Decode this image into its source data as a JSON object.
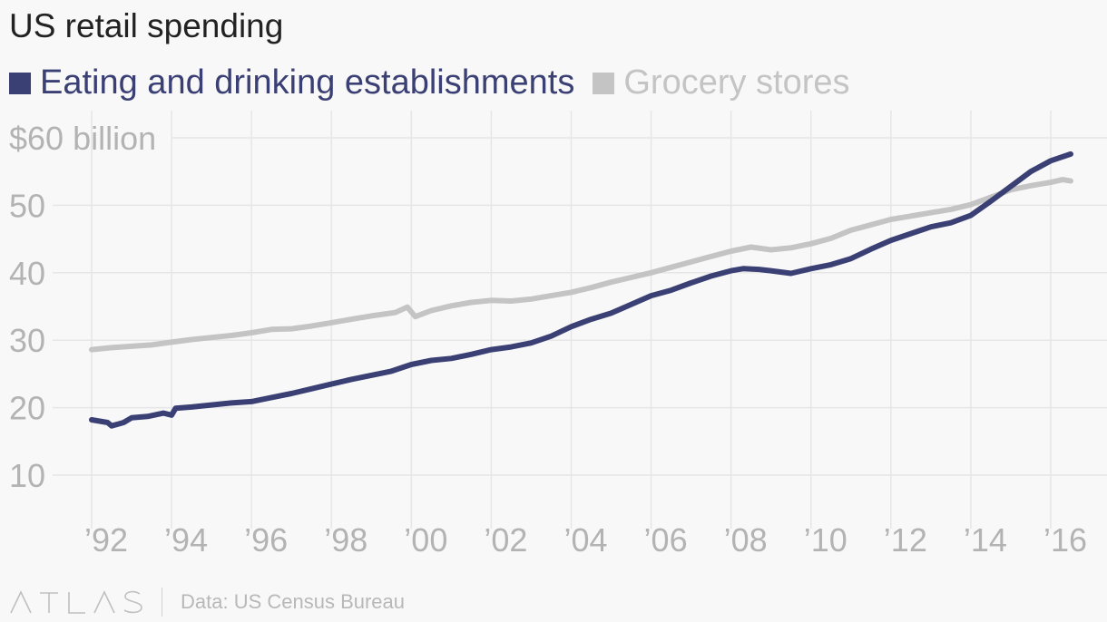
{
  "chart_data": {
    "type": "line",
    "title": "US retail spending",
    "xlabel": "",
    "ylabel": "",
    "y_unit_label": "$60 billion",
    "ylim": [
      5,
      64
    ],
    "xlim": [
      1991.6,
      2016.9
    ],
    "x_ticks": [
      1992,
      1994,
      1996,
      1998,
      2000,
      2002,
      2004,
      2006,
      2008,
      2010,
      2012,
      2014,
      2016
    ],
    "x_tick_labels": [
      "’92",
      "’94",
      "’96",
      "’98",
      "’00",
      "’02",
      "’04",
      "’06",
      "’08",
      "’10",
      "’12",
      "’14",
      "’16"
    ],
    "y_ticks": [
      10,
      20,
      30,
      40,
      50,
      60
    ],
    "y_tick_labels": [
      "10",
      "20",
      "30",
      "40",
      "50",
      "$60 billion"
    ],
    "grid": true,
    "legend_position": "top-left",
    "series": [
      {
        "name": "Eating and drinking establishments",
        "color": "#3a3f74",
        "points": [
          [
            1992.0,
            18.2
          ],
          [
            1992.4,
            17.8
          ],
          [
            1992.5,
            17.3
          ],
          [
            1992.8,
            17.8
          ],
          [
            1993.0,
            18.5
          ],
          [
            1993.4,
            18.7
          ],
          [
            1993.8,
            19.2
          ],
          [
            1994.0,
            18.9
          ],
          [
            1994.1,
            19.9
          ],
          [
            1994.5,
            20.1
          ],
          [
            1995.0,
            20.4
          ],
          [
            1995.5,
            20.7
          ],
          [
            1996.0,
            20.9
          ],
          [
            1996.5,
            21.5
          ],
          [
            1997.0,
            22.1
          ],
          [
            1997.5,
            22.8
          ],
          [
            1998.0,
            23.5
          ],
          [
            1998.5,
            24.2
          ],
          [
            1999.0,
            24.8
          ],
          [
            1999.5,
            25.4
          ],
          [
            2000.0,
            26.4
          ],
          [
            2000.5,
            27.0
          ],
          [
            2001.0,
            27.3
          ],
          [
            2001.5,
            27.9
          ],
          [
            2002.0,
            28.6
          ],
          [
            2002.5,
            29.0
          ],
          [
            2003.0,
            29.6
          ],
          [
            2003.5,
            30.6
          ],
          [
            2004.0,
            32.0
          ],
          [
            2004.5,
            33.1
          ],
          [
            2005.0,
            34.0
          ],
          [
            2005.5,
            35.3
          ],
          [
            2006.0,
            36.6
          ],
          [
            2006.5,
            37.4
          ],
          [
            2007.0,
            38.5
          ],
          [
            2007.5,
            39.5
          ],
          [
            2008.0,
            40.3
          ],
          [
            2008.3,
            40.6
          ],
          [
            2008.7,
            40.5
          ],
          [
            2009.0,
            40.3
          ],
          [
            2009.5,
            39.9
          ],
          [
            2010.0,
            40.6
          ],
          [
            2010.5,
            41.2
          ],
          [
            2011.0,
            42.1
          ],
          [
            2011.5,
            43.5
          ],
          [
            2012.0,
            44.8
          ],
          [
            2012.5,
            45.8
          ],
          [
            2013.0,
            46.8
          ],
          [
            2013.5,
            47.4
          ],
          [
            2014.0,
            48.5
          ],
          [
            2014.5,
            50.6
          ],
          [
            2015.0,
            52.8
          ],
          [
            2015.5,
            55.0
          ],
          [
            2016.0,
            56.6
          ],
          [
            2016.5,
            57.6
          ]
        ]
      },
      {
        "name": "Grocery stores",
        "color": "#c4c4c4",
        "points": [
          [
            1992.0,
            28.6
          ],
          [
            1992.5,
            28.9
          ],
          [
            1993.0,
            29.1
          ],
          [
            1993.5,
            29.3
          ],
          [
            1994.0,
            29.7
          ],
          [
            1994.5,
            30.1
          ],
          [
            1995.0,
            30.4
          ],
          [
            1995.5,
            30.7
          ],
          [
            1996.0,
            31.1
          ],
          [
            1996.5,
            31.6
          ],
          [
            1997.0,
            31.7
          ],
          [
            1997.5,
            32.1
          ],
          [
            1998.0,
            32.6
          ],
          [
            1998.5,
            33.1
          ],
          [
            1999.0,
            33.6
          ],
          [
            1999.6,
            34.1
          ],
          [
            1999.9,
            34.9
          ],
          [
            2000.1,
            33.5
          ],
          [
            2000.5,
            34.4
          ],
          [
            2001.0,
            35.1
          ],
          [
            2001.5,
            35.6
          ],
          [
            2002.0,
            35.9
          ],
          [
            2002.5,
            35.8
          ],
          [
            2003.0,
            36.1
          ],
          [
            2003.5,
            36.6
          ],
          [
            2004.0,
            37.1
          ],
          [
            2004.5,
            37.8
          ],
          [
            2005.0,
            38.6
          ],
          [
            2005.5,
            39.3
          ],
          [
            2006.0,
            40.0
          ],
          [
            2006.5,
            40.8
          ],
          [
            2007.0,
            41.6
          ],
          [
            2007.5,
            42.4
          ],
          [
            2008.0,
            43.2
          ],
          [
            2008.5,
            43.8
          ],
          [
            2009.0,
            43.4
          ],
          [
            2009.5,
            43.7
          ],
          [
            2010.0,
            44.3
          ],
          [
            2010.5,
            45.1
          ],
          [
            2011.0,
            46.3
          ],
          [
            2011.5,
            47.1
          ],
          [
            2012.0,
            47.9
          ],
          [
            2012.5,
            48.4
          ],
          [
            2013.0,
            48.9
          ],
          [
            2013.5,
            49.4
          ],
          [
            2014.0,
            50.1
          ],
          [
            2014.5,
            51.2
          ],
          [
            2015.0,
            52.3
          ],
          [
            2015.5,
            52.9
          ],
          [
            2016.0,
            53.4
          ],
          [
            2016.3,
            53.8
          ],
          [
            2016.5,
            53.6
          ]
        ]
      }
    ]
  },
  "footer": {
    "logo_text": "ATLAS",
    "source": "Data: US Census Bureau"
  }
}
